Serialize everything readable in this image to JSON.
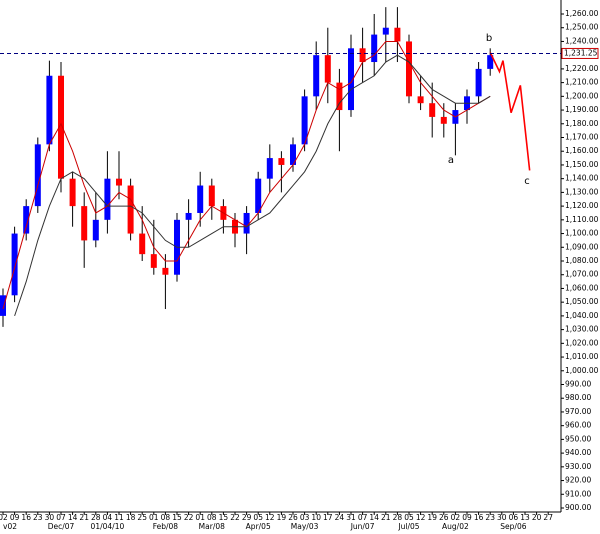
{
  "chart_data": {
    "type": "candlestick",
    "categories": [
      "02",
      "09",
      "16",
      "23",
      "30",
      "07",
      "14",
      "21",
      "28",
      "04",
      "11",
      "18",
      "25",
      "01",
      "08",
      "15",
      "22",
      "01",
      "08",
      "15",
      "22",
      "29",
      "05",
      "12",
      "19",
      "26",
      "03",
      "10",
      "17",
      "24",
      "31",
      "07",
      "14",
      "21",
      "28",
      "05",
      "12",
      "19",
      "26",
      "02",
      "09",
      "16",
      "23",
      "30",
      "06",
      "13",
      "20",
      "27"
    ],
    "month_labels": [
      "v02",
      null,
      null,
      null,
      null,
      "Dec/07",
      null,
      null,
      null,
      "01/04/10",
      null,
      null,
      null,
      null,
      "Feb/08",
      null,
      null,
      null,
      "Mar/08",
      null,
      null,
      null,
      "Apr/05",
      null,
      null,
      null,
      "May/03",
      null,
      null,
      null,
      null,
      "Jun/07",
      null,
      null,
      null,
      "Jul/05",
      null,
      null,
      null,
      "Aug/02",
      null,
      null,
      null,
      null,
      "Sep/06",
      null,
      null,
      null
    ],
    "up_color": "#0000ff",
    "down_color": "#ff0000",
    "open": [
      1040,
      1055,
      1100,
      1120,
      1165,
      1215,
      1140,
      1120,
      1095,
      1110,
      1140,
      1135,
      1100,
      1085,
      1075,
      1070,
      1110,
      1115,
      1135,
      1120,
      1110,
      1100,
      1115,
      1140,
      1155,
      1150,
      1165,
      1200,
      1230,
      1210,
      1190,
      1235,
      1225,
      1245,
      1250,
      1240,
      1200,
      1195,
      1185,
      1180,
      1190,
      1200,
      1220,
      null,
      null,
      null,
      null,
      null
    ],
    "high": [
      1060,
      1105,
      1125,
      1170,
      1226,
      1225,
      1145,
      1130,
      1130,
      1160,
      1160,
      1140,
      1120,
      1110,
      1085,
      1115,
      1125,
      1145,
      1140,
      1125,
      1115,
      1120,
      1145,
      1165,
      1160,
      1170,
      1205,
      1240,
      1250,
      1220,
      1245,
      1250,
      1260,
      1265,
      1265,
      1245,
      1215,
      1210,
      1195,
      1195,
      1205,
      1225,
      1235,
      null,
      null,
      null,
      null,
      null
    ],
    "low": [
      1032,
      1050,
      1095,
      1115,
      1160,
      1130,
      1105,
      1075,
      1090,
      1100,
      1125,
      1095,
      1080,
      1070,
      1045,
      1065,
      1090,
      1105,
      1110,
      1100,
      1090,
      1085,
      1110,
      1130,
      1130,
      1145,
      1160,
      1190,
      1195,
      1160,
      1185,
      1210,
      1215,
      1225,
      1225,
      1195,
      1190,
      1170,
      1170,
      1157,
      1180,
      1195,
      1215,
      null,
      null,
      null,
      null,
      null
    ],
    "close": [
      1055,
      1100,
      1120,
      1165,
      1215,
      1140,
      1120,
      1095,
      1110,
      1140,
      1135,
      1100,
      1085,
      1075,
      1070,
      1110,
      1115,
      1135,
      1120,
      1110,
      1100,
      1115,
      1140,
      1155,
      1150,
      1165,
      1200,
      1230,
      1210,
      1190,
      1235,
      1225,
      1245,
      1250,
      1240,
      1200,
      1195,
      1185,
      1180,
      1190,
      1200,
      1220,
      1230,
      null,
      null,
      null,
      null,
      null
    ],
    "series": [
      {
        "color": "#cc0000",
        "values": [
          1045,
          1075,
          1105,
          1135,
          1165,
          1180,
          1160,
          1135,
          1115,
          1120,
          1130,
          1125,
          1110,
          1090,
          1080,
          1080,
          1095,
          1110,
          1120,
          1115,
          1110,
          1105,
          1115,
          1130,
          1140,
          1150,
          1165,
          1190,
          1210,
          1205,
          1210,
          1225,
          1230,
          1240,
          1240,
          1225,
          1210,
          1200,
          1190,
          1185,
          1190,
          1195,
          1200,
          null,
          null,
          null,
          null,
          null
        ]
      },
      {
        "color": "#333333",
        "values": [
          null,
          1040,
          1065,
          1095,
          1120,
          1140,
          1145,
          1140,
          1130,
          1120,
          1120,
          1120,
          1115,
          1105,
          1095,
          1090,
          1090,
          1095,
          1100,
          1105,
          1105,
          1105,
          1110,
          1115,
          1125,
          1135,
          1145,
          1160,
          1180,
          1195,
          1205,
          1210,
          1215,
          1225,
          1230,
          1225,
          1215,
          1205,
          1200,
          1195,
          1195,
          1195,
          1200,
          null,
          null,
          null,
          null,
          null
        ]
      }
    ],
    "forecast": {
      "color": "#ff0000",
      "x": [
        42,
        42.8,
        43.1,
        43.8,
        44.6,
        45.4
      ],
      "values": [
        1232,
        1218,
        1226,
        1188,
        1208,
        1146
      ]
    },
    "level": {
      "value": 1231.25,
      "label": "1,231.25",
      "color": "#000080"
    },
    "annotations": [
      "a",
      "b",
      "c"
    ],
    "annotation_color": "#cc0099",
    "ylim": [
      900,
      1260
    ],
    "yticks": [
      {
        "value": 900,
        "label": "900.00"
      },
      {
        "value": 910,
        "label": "910.00"
      },
      {
        "value": 920,
        "label": "920.00"
      },
      {
        "value": 930,
        "label": "930.00"
      },
      {
        "value": 940,
        "label": "940.00"
      },
      {
        "value": 950,
        "label": "950.00"
      },
      {
        "value": 960,
        "label": "960.00"
      },
      {
        "value": 970,
        "label": "970.00"
      },
      {
        "value": 980,
        "label": "980.00"
      },
      {
        "value": 990,
        "label": "990.00"
      },
      {
        "value": 1000,
        "label": "1,000.00"
      },
      {
        "value": 1010,
        "label": "1,010.00"
      },
      {
        "value": 1020,
        "label": "1,020.00"
      },
      {
        "value": 1030,
        "label": "1,030.00"
      },
      {
        "value": 1040,
        "label": "1,040.00"
      },
      {
        "value": 1050,
        "label": "1,050.00"
      },
      {
        "value": 1060,
        "label": "1,060.00"
      },
      {
        "value": 1070,
        "label": "1,070.00"
      },
      {
        "value": 1080,
        "label": "1,080.00"
      },
      {
        "value": 1090,
        "label": "1,090.00"
      },
      {
        "value": 1100,
        "label": "1,100.00"
      },
      {
        "value": 1110,
        "label": "1,110.00"
      },
      {
        "value": 1120,
        "label": "1,120.00"
      },
      {
        "value": 1130,
        "label": "1,130.00"
      },
      {
        "value": 1140,
        "label": "1,140.00"
      },
      {
        "value": 1150,
        "label": "1,150.00"
      },
      {
        "value": 1160,
        "label": "1,160.00"
      },
      {
        "value": 1170,
        "label": "1,170.00"
      },
      {
        "value": 1180,
        "label": "1,180.00"
      },
      {
        "value": 1190,
        "label": "1,190.00"
      },
      {
        "value": 1200,
        "label": "1,200.00"
      },
      {
        "value": 1210,
        "label": "1,210.00"
      },
      {
        "value": 1220,
        "label": "1,220.00"
      },
      {
        "value": 1230,
        "label": "1,230.00"
      },
      {
        "value": 1240,
        "label": "1,240.00"
      },
      {
        "value": 1250,
        "label": "1,250.00"
      },
      {
        "value": 1260,
        "label": "1,260.00"
      }
    ]
  }
}
